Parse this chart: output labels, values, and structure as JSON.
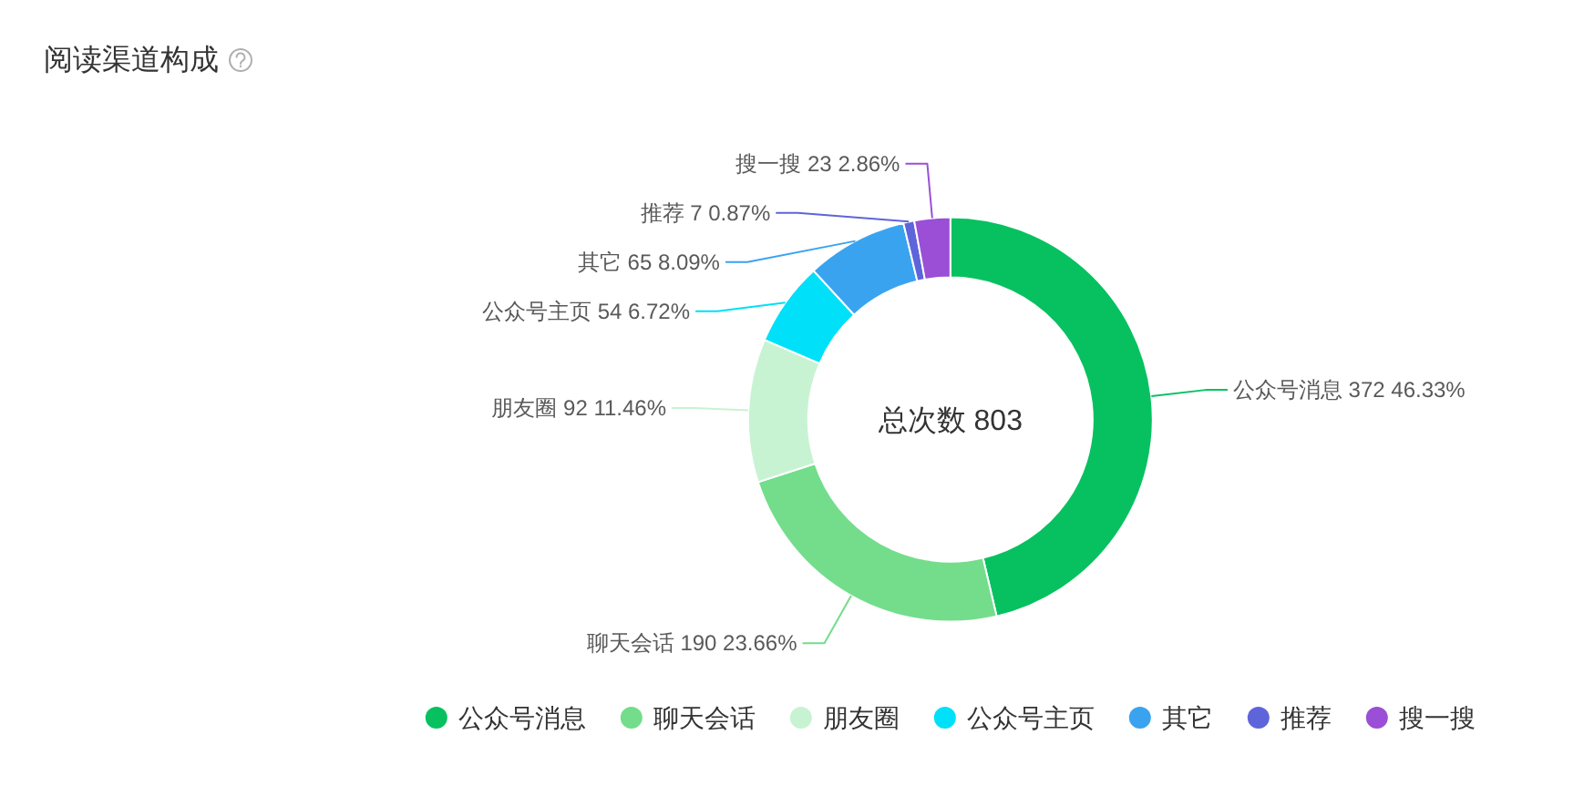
{
  "chart_data": {
    "type": "donut",
    "title": "阅读渠道构成",
    "categories": [
      "公众号消息",
      "聊天会话",
      "朋友圈",
      "公众号主页",
      "其它",
      "推荐",
      "搜一搜"
    ],
    "values": [
      372,
      190,
      92,
      54,
      65,
      7,
      23
    ],
    "colors": [
      "#07c160",
      "#73dd8b",
      "#c8f3d3",
      "#00e0f8",
      "#3aa3f0",
      "#5e65da",
      "#9a4fd6"
    ],
    "value_labels": [
      "372 46.33%",
      "190 23.66%",
      "92 11.46%",
      "54 6.72%",
      "65 8.09%",
      "7 0.87%",
      "23 2.86%"
    ],
    "annotations": [
      "总次数 803"
    ],
    "legend": "bottom"
  }
}
